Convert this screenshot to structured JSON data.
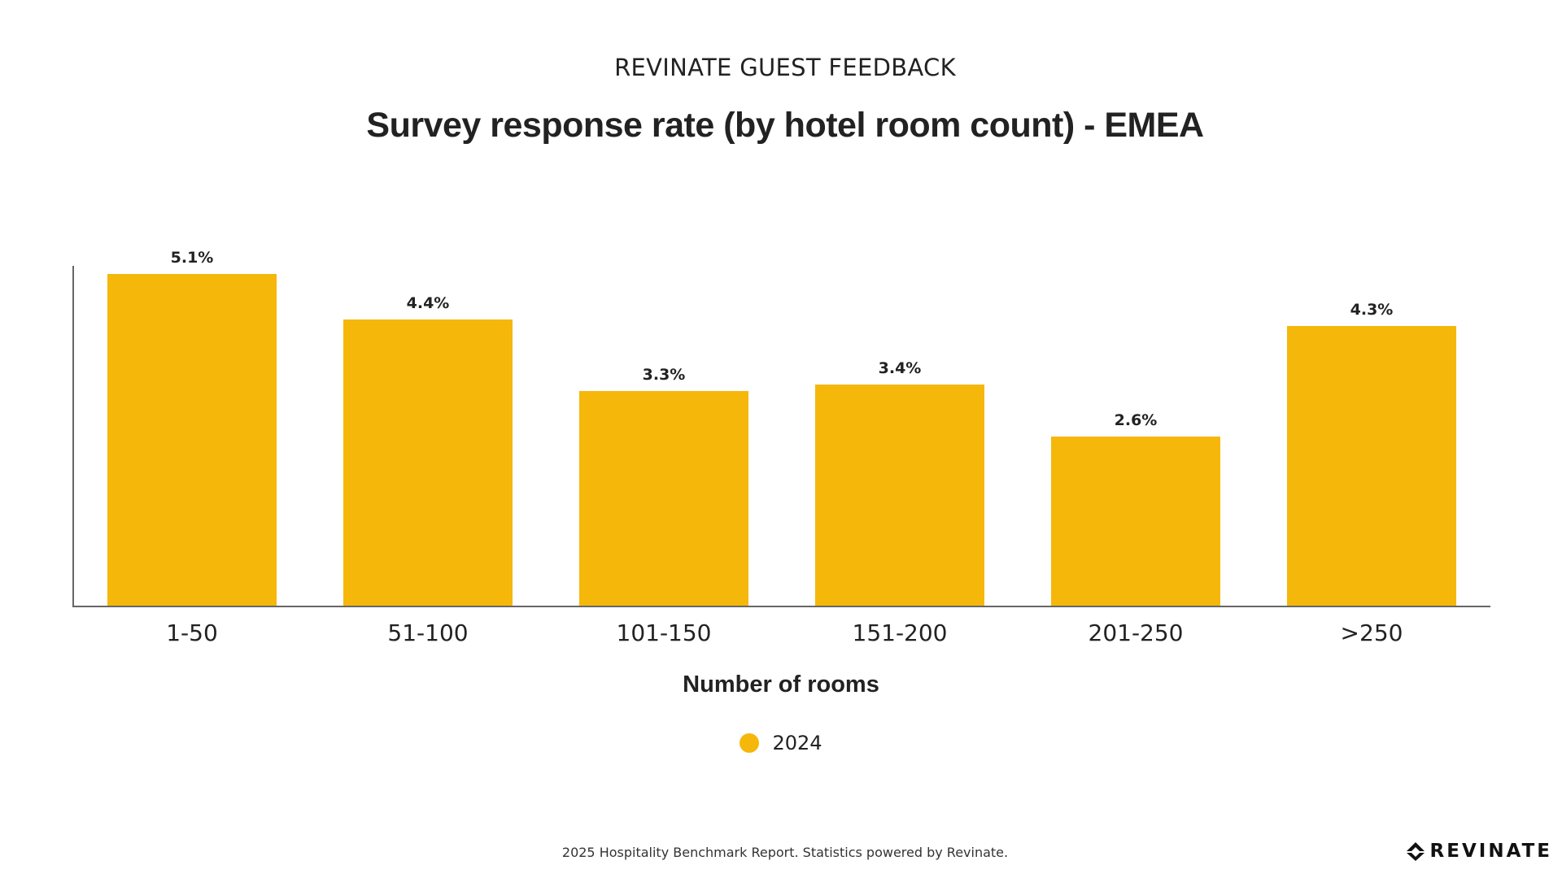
{
  "header": {
    "supertitle": "REVINATE GUEST FEEDBACK",
    "title": "Survey response rate (by hotel room count) - EMEA"
  },
  "chart_data": {
    "type": "bar",
    "title": "Survey response rate (by hotel room count) - EMEA",
    "xlabel": "Number of rooms",
    "ylabel": "",
    "categories": [
      "1-50",
      "51-100",
      "101-150",
      "151-200",
      "201-250",
      ">250"
    ],
    "series": [
      {
        "name": "2024",
        "values": [
          5.1,
          4.4,
          3.3,
          3.4,
          2.6,
          4.3
        ],
        "labels": [
          "5.1%",
          "4.4%",
          "3.3%",
          "3.4%",
          "2.6%",
          "4.3%"
        ],
        "color": "#F6B70B"
      }
    ],
    "ylim": [
      0,
      6
    ],
    "grid": false,
    "legend": "bottom-center",
    "axis_color": "#666666"
  },
  "legend": {
    "label": "2024",
    "color": "#F6B70B"
  },
  "footer": {
    "text": "2025 Hospitality Benchmark Report. Statistics powered by Revinate."
  },
  "logo": {
    "text": "REVINATE",
    "icon": "revinate-logo-icon"
  }
}
